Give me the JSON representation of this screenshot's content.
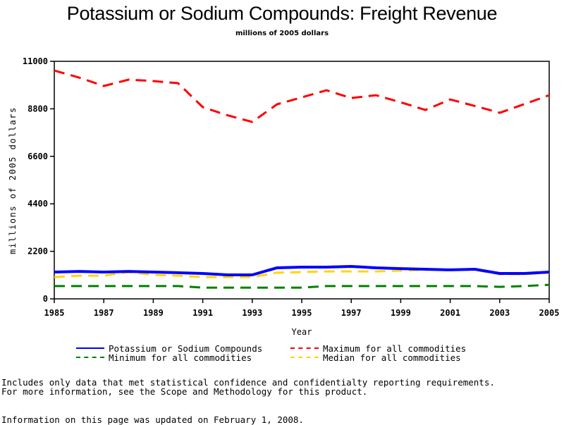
{
  "chart_data": {
    "type": "line",
    "title": "Potassium or Sodium Compounds: Freight Revenue",
    "subtitle": "millions of 2005 dollars",
    "xlabel": "Year",
    "ylabel": "millions of 2005 dollars",
    "xlim": [
      1985,
      2005
    ],
    "ylim": [
      0,
      11000
    ],
    "x_ticks": [
      "1985",
      "1987",
      "1989",
      "1991",
      "1993",
      "1995",
      "1997",
      "1999",
      "2001",
      "2003",
      "2005"
    ],
    "y_ticks": [
      "0",
      "2200",
      "4400",
      "6600",
      "8800",
      "11000"
    ],
    "grid": false,
    "legend_position": "bottom",
    "x": [
      1985,
      1986,
      1987,
      1988,
      1989,
      1990,
      1991,
      1992,
      1993,
      1994,
      1995,
      1996,
      1997,
      1998,
      1999,
      2000,
      2001,
      2002,
      2003,
      2004,
      2005
    ],
    "series": [
      {
        "name": "Potassium or Sodium Compounds",
        "color": "#0000ff",
        "style": "solid",
        "values": [
          1240,
          1270,
          1240,
          1270,
          1240,
          1210,
          1175,
          1110,
          1110,
          1435,
          1470,
          1470,
          1500,
          1435,
          1400,
          1370,
          1340,
          1370,
          1175,
          1175,
          1240
        ]
      },
      {
        "name": "Maximum for all commodities",
        "color": "#ff0000",
        "style": "dashed",
        "values": [
          10574,
          10250,
          9856,
          10150,
          10085,
          9987,
          8877,
          8500,
          8192,
          9008,
          9330,
          9660,
          9300,
          9430,
          9105,
          8747,
          9235,
          8930,
          8616,
          9020,
          9430
        ]
      },
      {
        "name": "Minimum for all commodities",
        "color": "#008000",
        "style": "dashed",
        "values": [
          590,
          590,
          590,
          590,
          590,
          590,
          520,
          520,
          520,
          520,
          520,
          590,
          590,
          590,
          590,
          590,
          590,
          590,
          555,
          590,
          650
        ]
      },
      {
        "name": "Median for all commodities",
        "color": "#ffd700",
        "style": "dashed",
        "values": [
          1010,
          1075,
          1075,
          1240,
          1110,
          1075,
          1010,
          1010,
          1010,
          1210,
          1240,
          1270,
          1270,
          1270,
          1305,
          1340,
          1340,
          1340,
          1140,
          1140,
          1210
        ]
      }
    ]
  },
  "notes": {
    "line1": "Includes only data that met statistical confidence and confidentialty reporting requirements.",
    "line2": "For more information, see the Scope and Methodology for this product.",
    "updated": "Information on this page was updated on February 1, 2008."
  }
}
